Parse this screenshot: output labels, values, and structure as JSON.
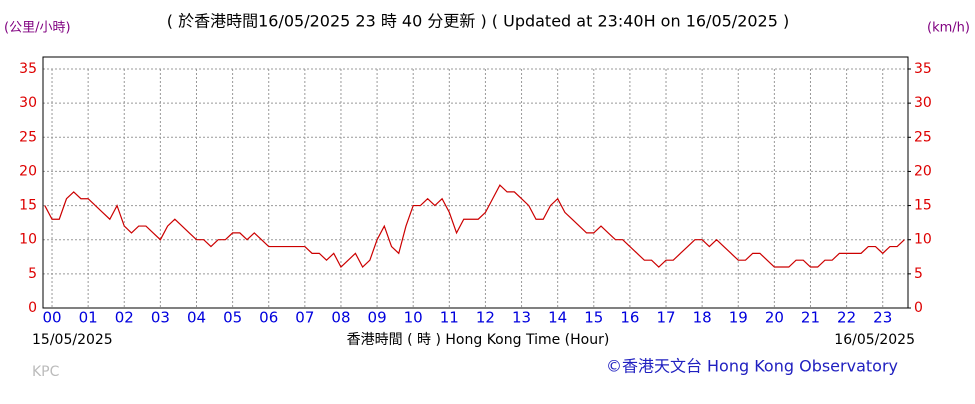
{
  "chart_data": {
    "type": "line",
    "title": "( 於香港時間16/05/2025 23 時 40 分更新 ) ( Updated at 23:40H on 16/05/2025 )",
    "y_label": "(公里/小時)",
    "y2_label": "(km/h)",
    "x_label": "香港時間 ( 時 ) Hong Kong Time (Hour)",
    "start_date": "15/05/2025",
    "end_date": "16/05/2025",
    "station": "KPC",
    "credit": "©香港天文台 Hong Kong Observatory",
    "color": "#cc0000",
    "grid": true,
    "xlim": [
      -0.25,
      23.7
    ],
    "xticks": [
      {
        "value": 0,
        "label": "00"
      },
      {
        "value": 1,
        "label": "01"
      },
      {
        "value": 2,
        "label": "02"
      },
      {
        "value": 3,
        "label": "03"
      },
      {
        "value": 4,
        "label": "04"
      },
      {
        "value": 5,
        "label": "05"
      },
      {
        "value": 6,
        "label": "06"
      },
      {
        "value": 7,
        "label": "07"
      },
      {
        "value": 8,
        "label": "08"
      },
      {
        "value": 9,
        "label": "09"
      },
      10,
      11,
      12,
      13,
      14,
      15,
      16,
      17,
      18,
      19,
      20,
      21,
      22,
      23
    ],
    "ylim": [
      0,
      35
    ],
    "yticks": [
      0,
      5,
      10,
      15,
      20,
      25,
      30,
      35
    ],
    "y2lim": [
      0,
      35
    ],
    "y2ticks": [
      0,
      5,
      10,
      15,
      20,
      25,
      30,
      35
    ],
    "x": [
      -0.2,
      0,
      0.2,
      0.4,
      0.6,
      0.8,
      1,
      1.2,
      1.4,
      1.6,
      1.8,
      2,
      2.2,
      2.4,
      2.6,
      2.8,
      3,
      3.2,
      3.4,
      3.6,
      3.8,
      4,
      4.2,
      4.4,
      4.6,
      4.8,
      5,
      5.2,
      5.4,
      5.6,
      5.8,
      6,
      6.2,
      6.4,
      6.6,
      6.8,
      7,
      7.2,
      7.4,
      7.6,
      7.8,
      8,
      8.2,
      8.4,
      8.6,
      8.8,
      9,
      9.2,
      9.4,
      9.6,
      9.8,
      10,
      10.2,
      10.4,
      10.6,
      10.8,
      11,
      11.2,
      11.4,
      11.6,
      11.8,
      12,
      12.2,
      12.4,
      12.6,
      12.8,
      13,
      13.2,
      13.4,
      13.6,
      13.8,
      14,
      14.2,
      14.4,
      14.6,
      14.8,
      15,
      15.2,
      15.4,
      15.6,
      15.8,
      16,
      16.2,
      16.4,
      16.6,
      16.8,
      17,
      17.2,
      17.4,
      17.6,
      17.8,
      18,
      18.2,
      18.4,
      18.6,
      18.8,
      19,
      19.2,
      19.4,
      19.6,
      19.8,
      20,
      20.2,
      20.4,
      20.6,
      20.8,
      21,
      21.2,
      21.4,
      21.6,
      21.8,
      22,
      22.2,
      22.4,
      22.6,
      22.8,
      23,
      23.2,
      23.4,
      23.6
    ],
    "values": [
      15,
      13,
      13,
      16,
      17,
      16,
      16,
      15,
      14,
      13,
      15,
      12,
      11,
      12,
      12,
      11,
      10,
      12,
      13,
      12,
      11,
      10,
      10,
      9,
      10,
      10,
      11,
      11,
      10,
      11,
      10,
      9,
      9,
      9,
      9,
      9,
      9,
      8,
      8,
      7,
      8,
      6,
      7,
      8,
      6,
      7,
      10,
      12,
      9,
      8,
      12,
      15,
      15,
      16,
      15,
      16,
      14,
      11,
      13,
      13,
      13,
      14,
      16,
      18,
      17,
      17,
      16,
      15,
      13,
      13,
      15,
      16,
      14,
      13,
      12,
      11,
      11,
      12,
      11,
      10,
      10,
      9,
      8,
      7,
      7,
      6,
      7,
      7,
      8,
      9,
      10,
      10,
      9,
      10,
      9,
      8,
      7,
      7,
      8,
      8,
      7,
      6,
      6,
      6,
      7,
      7,
      6,
      6,
      7,
      7,
      8,
      8,
      8,
      8,
      9,
      9,
      8,
      9,
      9,
      10
    ]
  }
}
